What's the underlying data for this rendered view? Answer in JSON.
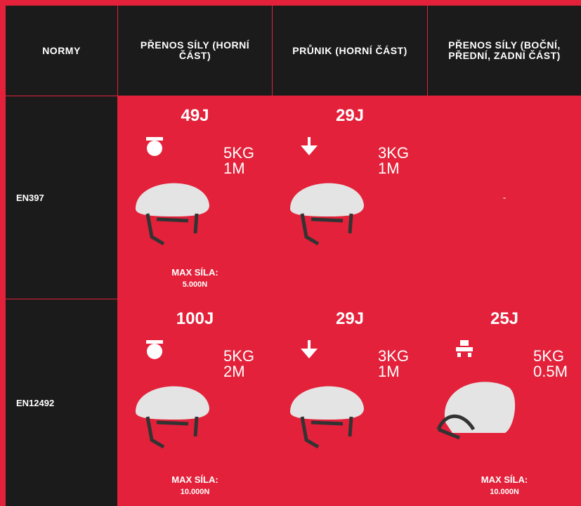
{
  "header": [
    "NORMY",
    "PŘENOS SÍLY (HORNÍ ČÁST)",
    "PRŮNIK (HORNÍ ČÁST)",
    "PŘENOS SÍLY (BOČNÍ, PŘEDNÍ, ZADNÍ ČÁST)"
  ],
  "rows": [
    {
      "norm": "EN397",
      "cells": [
        {
          "energy": "49J",
          "weight": "5KG",
          "height": "1M",
          "max_label": "MAX SÍLA:",
          "max_value": "5.000N"
        },
        {
          "energy": "29J",
          "weight": "3KG",
          "height": "1M"
        },
        {
          "text": "-"
        }
      ]
    },
    {
      "norm": "EN12492",
      "cells": [
        {
          "energy": "100J",
          "weight": "5KG",
          "height": "2M",
          "max_label": "MAX SÍLA:",
          "max_value": "10.000N"
        },
        {
          "energy": "29J",
          "weight": "3KG",
          "height": "1M"
        },
        {
          "energy": "25J",
          "weight": "5KG",
          "height": "0.5M",
          "max_label": "MAX SÍLA:",
          "max_value": "10.000N"
        }
      ]
    }
  ]
}
